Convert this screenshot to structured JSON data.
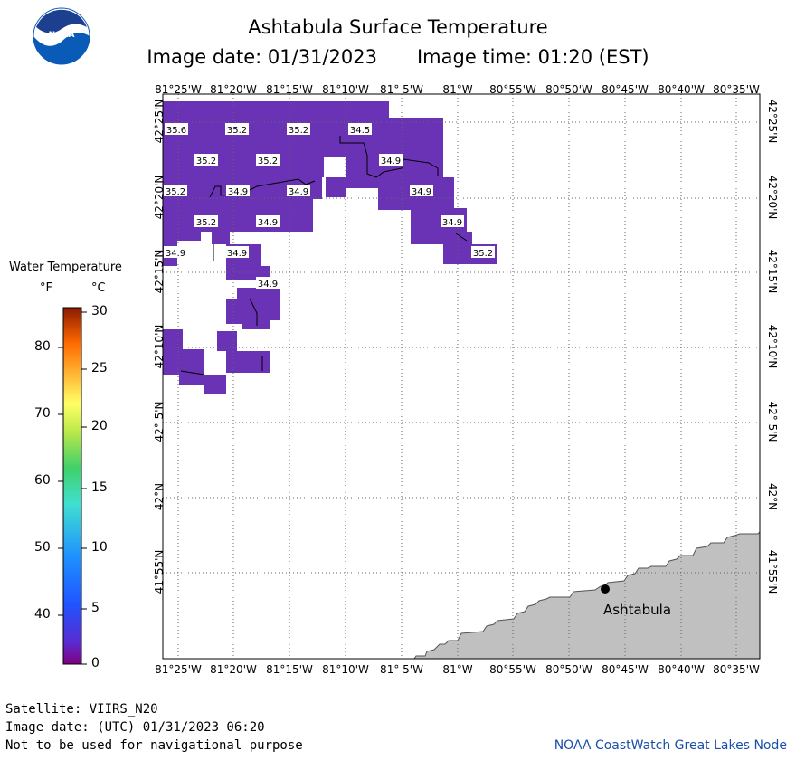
{
  "title": "Ashtabula Surface Temperature",
  "image_date_label": "Image date: 01/31/2023",
  "image_time_label": "Image time: 01:20 (EST)",
  "lon_labels": [
    "81°25'W",
    "81°20'W",
    "81°15'W",
    "81°10'W",
    "81° 5'W",
    "81°W",
    "80°55'W",
    "80°50'W",
    "80°45'W",
    "80°40'W",
    "80°35'W"
  ],
  "lat_labels": [
    "42°25'N",
    "42°20'N",
    "42°15'N",
    "42°10'N",
    "42° 5'N",
    "42°N",
    "41°55'N"
  ],
  "legend": {
    "title": "Water Temperature",
    "unit_f": "°F",
    "unit_c": "°C",
    "f_ticks": [
      "80",
      "70",
      "60",
      "50",
      "40"
    ],
    "c_ticks": [
      "30",
      "25",
      "20",
      "15",
      "10",
      "5",
      "0"
    ]
  },
  "temperature_labels": [
    "35.6",
    "35.2",
    "35.2",
    "34.5",
    "35.2",
    "35.2",
    "34.9",
    "35.2",
    "34.9",
    "34.9",
    "34.9",
    "35.2",
    "34.9",
    "34.9",
    "34.9",
    "34.9",
    "35.2",
    "34.9"
  ],
  "city": "Ashtabula",
  "footer": {
    "satellite": "Satellite: VIIRS_N20",
    "utc_date": "Image date: (UTC) 01/31/2023  06:20",
    "disclaimer": "Not to be used for navigational purpose",
    "credit": "NOAA CoastWatch Great Lakes Node"
  },
  "colors": {
    "water_purple": "#6a32b4",
    "land": "#c0c0c0",
    "noaa_blue": "#0a5bb8",
    "credit_blue": "#1a4fa8"
  }
}
